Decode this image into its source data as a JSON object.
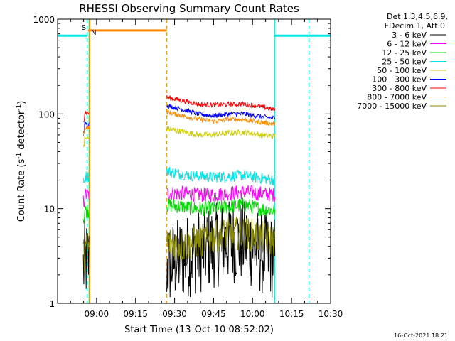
{
  "chart_data": {
    "type": "line",
    "title": "RHESSI Observing Summary Count Rates",
    "xlabel": "Start Time (13-Oct-10 08:52:02)",
    "ylabel_parts": [
      "Count Rate (s",
      "-1",
      " detector",
      "-1",
      ")"
    ],
    "yscale": "log",
    "ylim": [
      1,
      1000
    ],
    "xlim_minutes": [
      -7.0,
      98.0
    ],
    "x_ticks": [
      {
        "m": 8,
        "label": "09:00"
      },
      {
        "m": 23,
        "label": "09:15"
      },
      {
        "m": 38,
        "label": "09:30"
      },
      {
        "m": 53,
        "label": "09:45"
      },
      {
        "m": 68,
        "label": "10:00"
      },
      {
        "m": 83,
        "label": "10:15"
      },
      {
        "m": 98,
        "label": "10:30"
      }
    ],
    "y_ticks": [
      {
        "v": 1,
        "label": "1"
      },
      {
        "v": 10,
        "label": "10"
      },
      {
        "v": 100,
        "label": "100"
      },
      {
        "v": 1000,
        "label": "1000"
      }
    ],
    "legend": {
      "placement": "right",
      "header": [
        "Det 1,3,4,5,6,9,",
        "FDecim 1, Att 0"
      ],
      "entries": [
        {
          "label": "3 - 6 keV",
          "color": "#000000"
        },
        {
          "label": "6 - 12 keV",
          "color": "#ff00ff"
        },
        {
          "label": "12 - 25 keV",
          "color": "#00dd00"
        },
        {
          "label": "25 - 50 keV",
          "color": "#00e5e5"
        },
        {
          "label": "50 - 100 keV",
          "color": "#cccc00"
        },
        {
          "label": "100 - 300 keV",
          "color": "#0000ff"
        },
        {
          "label": "300 - 800 keV",
          "color": "#ff0000"
        },
        {
          "label": "800 - 7000 keV",
          "color": "#ff8800"
        },
        {
          "label": "7000 - 15000 keV",
          "color": "#888800"
        }
      ]
    },
    "observing_segments": [
      {
        "start_m": 2.9,
        "end_m": 5.1
      },
      {
        "start_m": 35.0,
        "end_m": 76.7
      }
    ],
    "series": [
      {
        "name": "3 - 6 keV",
        "color": "#000000",
        "seg1": 2.8,
        "seg2": [
          2.5,
          3.0,
          3.5,
          4.0,
          4.5,
          4.5,
          3.5,
          3.0
        ],
        "noise": 0.45
      },
      {
        "name": "6 - 12 keV",
        "color": "#ff00ff",
        "seg1": 14,
        "seg2": [
          14.5,
          14.5,
          14.0,
          14.0,
          14.5,
          15.0,
          14.5,
          14.0
        ],
        "noise": 0.08
      },
      {
        "name": "12 - 25 keV",
        "color": "#00dd00",
        "seg1": 9.5,
        "seg2": [
          11.0,
          10.5,
          10.0,
          10.0,
          10.5,
          11.0,
          10.0,
          9.5
        ],
        "noise": 0.08
      },
      {
        "name": "25 - 50 keV",
        "color": "#00e5e5",
        "seg1": 22,
        "seg2": [
          25.0,
          23.0,
          22.0,
          21.5,
          22.0,
          22.5,
          21.0,
          20.0
        ],
        "noise": 0.06
      },
      {
        "name": "50 - 100 keV",
        "color": "#cccc00",
        "seg1": 55,
        "seg2": [
          70.0,
          65.0,
          60.0,
          60.0,
          63.0,
          64.0,
          60.0,
          58.0
        ],
        "noise": 0.03
      },
      {
        "name": "100 - 300 keV",
        "color": "#0000ff",
        "seg1": 78,
        "seg2": [
          122.0,
          112.0,
          100.0,
          96.0,
          100.0,
          100.0,
          94.0,
          90.0
        ],
        "noise": 0.025
      },
      {
        "name": "300 - 800 keV",
        "color": "#ff0000",
        "seg1": 103,
        "seg2": [
          150.0,
          138.0,
          127.0,
          124.0,
          126.0,
          127.0,
          120.0,
          110.0
        ],
        "noise": 0.025
      },
      {
        "name": "800 - 7000 keV",
        "color": "#ff8800",
        "seg1": 72,
        "seg2": [
          105.0,
          96.0,
          88.0,
          83.0,
          88.0,
          87.0,
          82.0,
          78.0
        ],
        "noise": 0.025
      },
      {
        "name": "7000 - 15000 keV",
        "color": "#888800",
        "seg1": 3.8,
        "seg2": [
          4.5,
          4.0,
          4.5,
          5.0,
          5.5,
          5.5,
          5.0,
          4.5
        ],
        "noise": 0.18
      }
    ],
    "flags": [
      {
        "letter": "S",
        "color": "#ff8800",
        "at_m": 4.7,
        "bar_start_m": 4.7,
        "bar_end_m": 35.0,
        "bar_level": 760
      },
      {
        "letter": "N",
        "color": "#00e5e5",
        "at_m": 5.6
      }
    ],
    "cyan_bars": [
      {
        "start_m": -7.0,
        "end_m": 4.4,
        "level": 670
      },
      {
        "start_m": 76.5,
        "end_m": 98.0,
        "level": 670
      }
    ],
    "vlines": [
      {
        "m": -7.0,
        "color": "#00e5e5",
        "style": "solid"
      },
      {
        "m": 4.4,
        "color": "#00e5e5",
        "style": "dashed"
      },
      {
        "m": 5.1,
        "color": "#00dd00",
        "style": "solid"
      },
      {
        "m": 5.4,
        "color": "#ff8800",
        "style": "solid"
      },
      {
        "m": 35.0,
        "color": "#ff8800",
        "style": "dashed"
      },
      {
        "m": 76.5,
        "color": "#00e5e5",
        "style": "solid"
      },
      {
        "m": 89.7,
        "color": "#00e5e5",
        "style": "dashed"
      }
    ]
  },
  "footer": {
    "timestamp": "16-Oct-2021 18:21"
  }
}
